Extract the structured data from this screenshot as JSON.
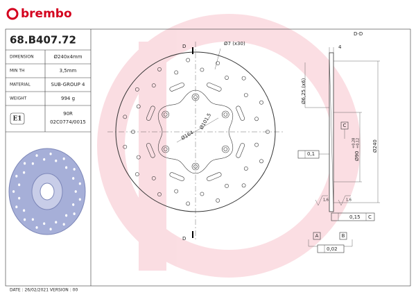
{
  "header": {
    "brand": "brembo",
    "part_number": "68.B407.72"
  },
  "specs": {
    "rows": [
      [
        "DIMENSION",
        "Ø240x4mm"
      ],
      [
        "MIN TH",
        "3,5mm"
      ],
      [
        "MATERIAL",
        "SUB-GROUP 4"
      ],
      [
        "WEIGHT",
        "994 g"
      ]
    ]
  },
  "homologation": {
    "mark": "E1",
    "code": "90R",
    "number": "02C0774/0015"
  },
  "footer": "DATE : 26/02/2021 VERSION : 00",
  "drawing": {
    "front": {
      "section_top": "D",
      "section_bottom": "D",
      "holes": "Ø7 (x30)",
      "inner_diameter": "Ø164",
      "bolt_circle": "Ø101,5"
    },
    "section": {
      "title": "D-D",
      "thickness": "4",
      "bolt_holes": "Ø6,25 (x6)",
      "outer": "Ø240",
      "center_bore": "Ø90",
      "tol_upper": "+0,28",
      "tol_lower": "+0,12",
      "datum_c": "C",
      "flatness": "0,1",
      "roughness_left": "1,6",
      "roughness_right": "1,6",
      "runout": "0,15",
      "runout_datum": "C",
      "datum_a": "A",
      "datum_b": "B",
      "parallelism": "0,02"
    }
  }
}
